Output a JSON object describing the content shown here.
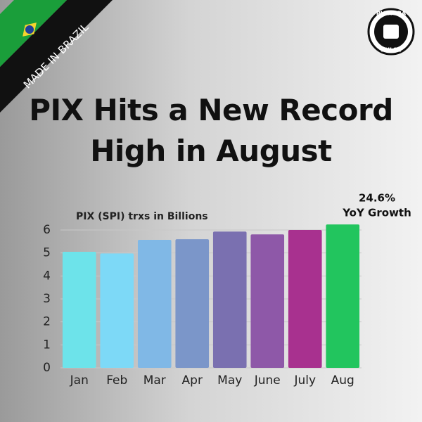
{
  "banner": "MADE IN BRAZIL",
  "logo": [
    "PLENORA",
    "PULSE"
  ],
  "chart_data": {
    "type": "bar",
    "title": "PIX Hits a New Record High in August",
    "y_label": "PIX (SPI) trxs in Billions",
    "annotation": [
      "24.6%",
      "YoY Growth"
    ],
    "categories": [
      "Jan",
      "Feb",
      "Mar",
      "Apr",
      "May",
      "June",
      "July",
      "Aug"
    ],
    "values": [
      5.05,
      4.98,
      5.57,
      5.6,
      5.93,
      5.81,
      6.0,
      6.24
    ],
    "colors": [
      "#6de3ea",
      "#7dd9f7",
      "#80b8e6",
      "#7b96c9",
      "#7a70b0",
      "#8e58a8",
      "#a8318f",
      "#22c55e"
    ],
    "ylim": [
      0,
      6
    ],
    "yticks": [
      0,
      1,
      2,
      3,
      4,
      5,
      6
    ],
    "grid": true
  }
}
